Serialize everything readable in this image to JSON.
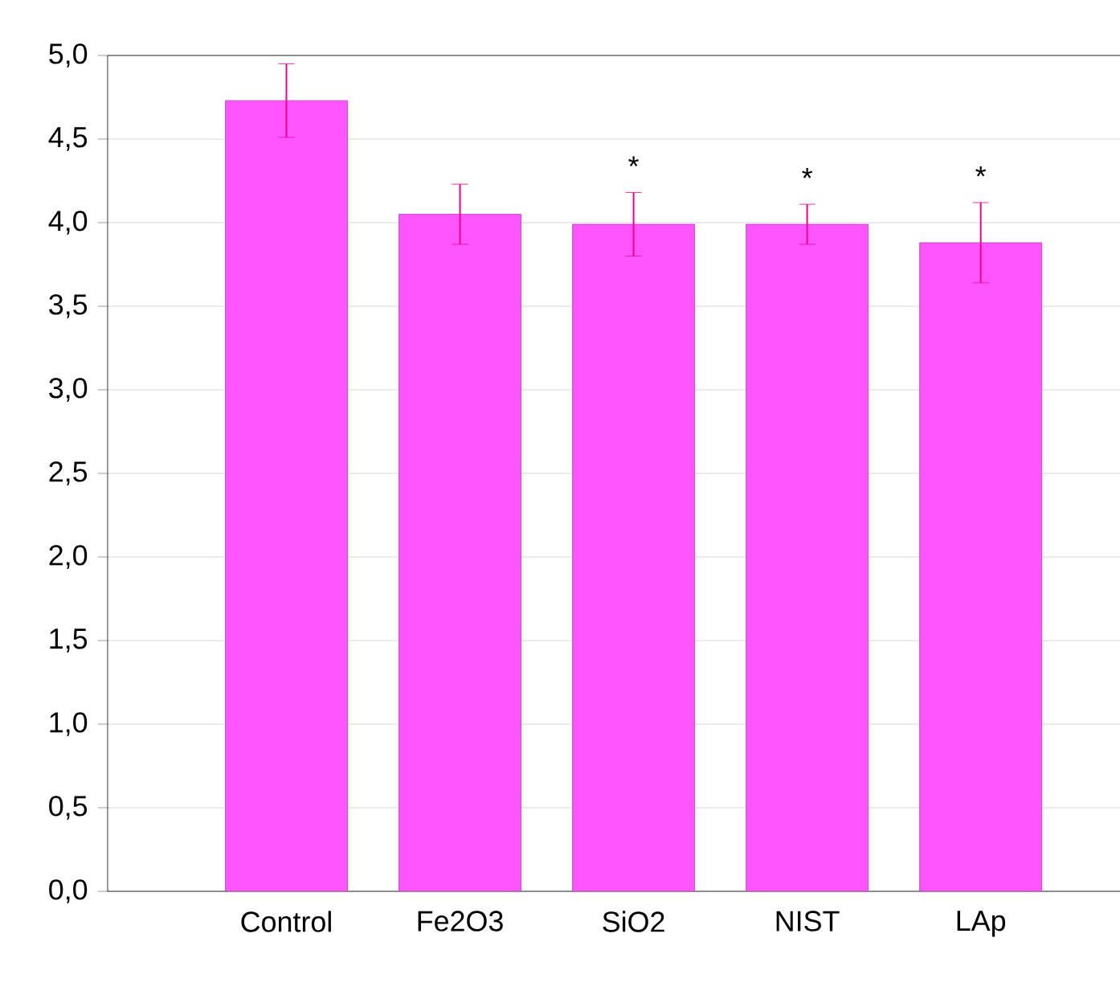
{
  "chart_data": {
    "type": "bar",
    "categories": [
      "Control",
      "Fe2O3",
      "SiO2",
      "NIST",
      "LAp"
    ],
    "values": [
      4.73,
      4.05,
      3.99,
      3.99,
      3.88
    ],
    "errors": [
      0.22,
      0.18,
      0.19,
      0.12,
      0.24
    ],
    "color": "#ff55ff",
    "ylim": [
      0,
      5
    ],
    "yticks": [
      {
        "value": 0,
        "label": "0,0"
      },
      {
        "value": 0.5,
        "label": "0,5"
      },
      {
        "value": 1,
        "label": "1,0"
      },
      {
        "value": 1.5,
        "label": "1,5"
      },
      {
        "value": 2,
        "label": "2,0"
      },
      {
        "value": 2.5,
        "label": "2,5"
      },
      {
        "value": 3,
        "label": "3,0"
      },
      {
        "value": 3.5,
        "label": "3,5"
      },
      {
        "value": 4,
        "label": "4,0"
      },
      {
        "value": 4.5,
        "label": "4,5"
      },
      {
        "value": 5,
        "label": "5,0"
      }
    ],
    "grid": "y",
    "annotations": [
      "*",
      "*",
      "*"
    ]
  }
}
